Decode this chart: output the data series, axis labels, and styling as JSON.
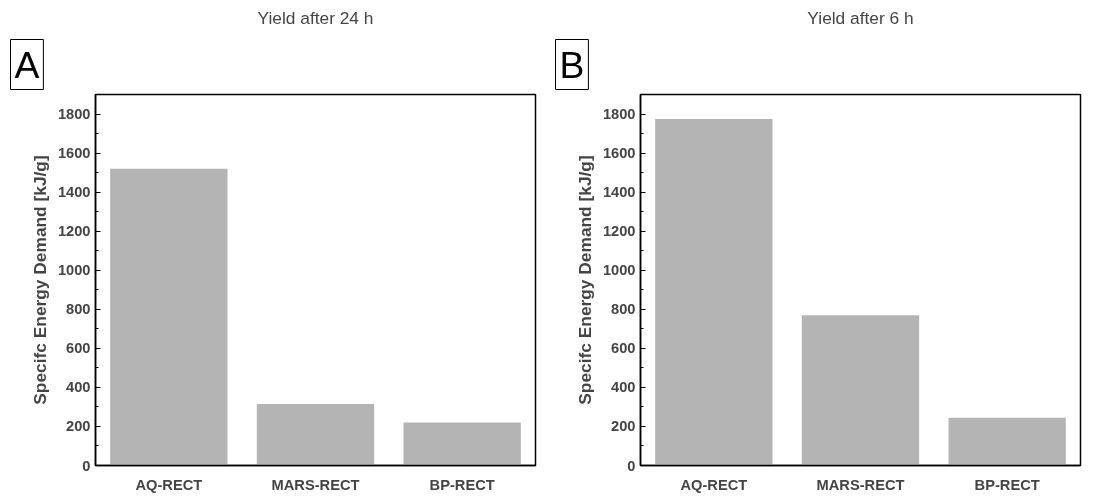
{
  "chart_data": [
    {
      "type": "bar",
      "title": "Yield after 24 h",
      "ylabel": "Specifc Energy Demand [kJ/g]",
      "annotations": [
        "A"
      ],
      "categories": [
        "AQ-RECT",
        "MARS-RECT",
        "BP-RECT"
      ],
      "values": [
        1520,
        315,
        220
      ],
      "color": "#b4b4b4",
      "ylim": [
        0,
        1900
      ],
      "yticks": [
        0,
        200,
        400,
        600,
        800,
        1000,
        1200,
        1400,
        1600,
        1800
      ],
      "grid": false
    },
    {
      "type": "bar",
      "title": "Yield after 6 h",
      "ylabel": "Specifc Energy Demand [kJ/g]",
      "annotations": [
        "B"
      ],
      "categories": [
        "AQ-RECT",
        "MARS-RECT",
        "BP-RECT"
      ],
      "values": [
        1775,
        770,
        245
      ],
      "color": "#b4b4b4",
      "ylim": [
        0,
        1900
      ],
      "yticks": [
        0,
        200,
        400,
        600,
        800,
        1000,
        1200,
        1400,
        1600,
        1800
      ],
      "grid": false
    }
  ]
}
